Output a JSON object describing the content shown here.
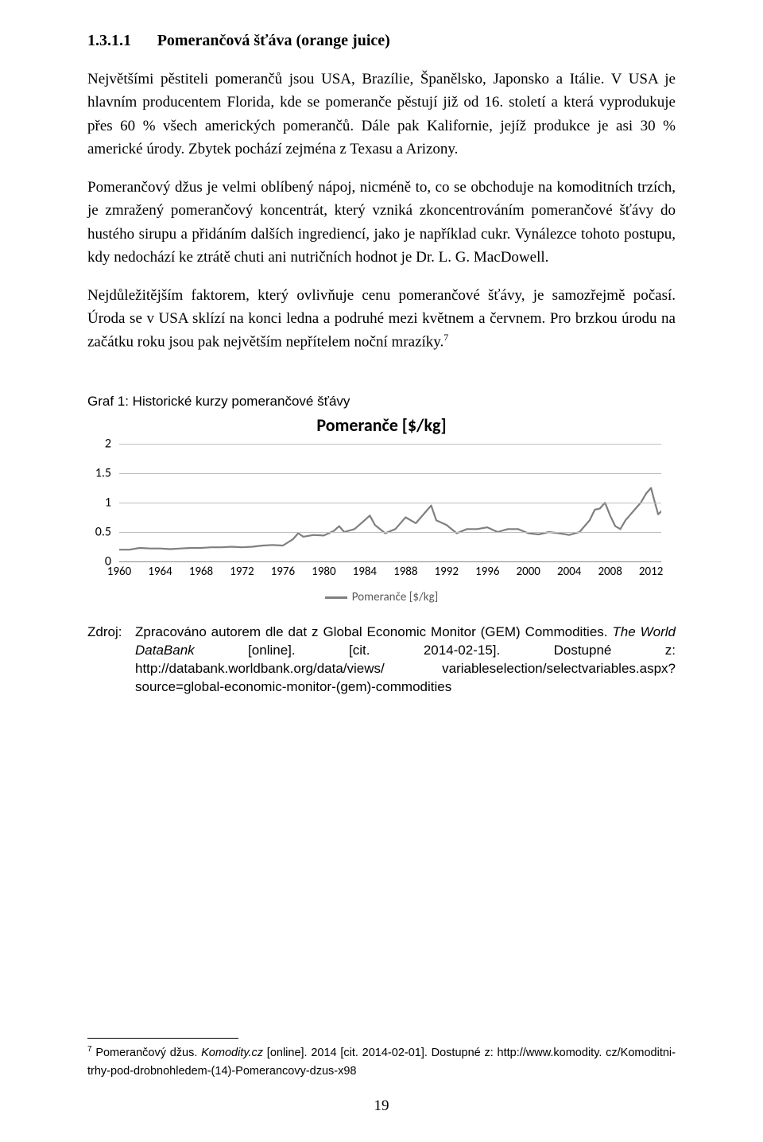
{
  "heading": {
    "num": "1.3.1.1",
    "title": "Pomerančová šťáva (orange juice)"
  },
  "para1": "Největšími pěstiteli pomerančů jsou USA, Brazílie, Španělsko, Japonsko a Itálie. V USA je hlavním producentem Florida, kde se pomeranče pěstují již od 16. století a která vyprodukuje přes 60 % všech amerických pomerančů. Dále pak Kalifornie, jejíž produkce je asi 30 % americké úrody. Zbytek pochází zejména z Texasu a Arizony.",
  "para2": "Pomerančový džus je velmi oblíbený nápoj, nicméně to, co se obchoduje na komoditních trzích, je zmražený pomerančový koncentrát, který vzniká zkoncentrováním pomerančové šťávy do hustého sirupu a přidáním dalších ingrediencí, jako je například cukr. Vynálezce tohoto postupu, kdy nedochází ke ztrátě chuti ani nutričních hodnot je Dr. L. G. MacDowell.",
  "para3_a": "Nejdůležitějším faktorem, který ovlivňuje cenu pomerančové šťávy, je samozřejmě počasí. Úroda se v USA sklízí na konci ledna a podruhé mezi květnem a červnem. Pro brzkou úrodu na začátku roku jsou pak největším nepřítelem noční mrazíky.",
  "para3_sup": "7",
  "graf_label": "Graf 1: Historické kurzy pomerančové šťávy",
  "chart": {
    "title": "Pomeranče [$/kg]",
    "legend": "Pomeranče [$/kg]",
    "line_color": "#7f7f7f",
    "grid_color": "#bfbfbf",
    "ymin": 0,
    "ymax": 2,
    "ystep": 0.5,
    "yticks": [
      "0",
      "0.5",
      "1",
      "1.5",
      "2"
    ],
    "xticks": [
      "1960",
      "1964",
      "1968",
      "1972",
      "1976",
      "1980",
      "1984",
      "1988",
      "1992",
      "1996",
      "2000",
      "2004",
      "2008",
      "2012"
    ],
    "series": [
      [
        1960,
        0.2
      ],
      [
        1961,
        0.2
      ],
      [
        1962,
        0.23
      ],
      [
        1963,
        0.22
      ],
      [
        1964,
        0.22
      ],
      [
        1965,
        0.21
      ],
      [
        1966,
        0.22
      ],
      [
        1967,
        0.23
      ],
      [
        1968,
        0.23
      ],
      [
        1969,
        0.24
      ],
      [
        1970,
        0.24
      ],
      [
        1971,
        0.25
      ],
      [
        1972,
        0.24
      ],
      [
        1973,
        0.25
      ],
      [
        1974,
        0.27
      ],
      [
        1975,
        0.28
      ],
      [
        1976,
        0.27
      ],
      [
        1977,
        0.38
      ],
      [
        1977.5,
        0.48
      ],
      [
        1978,
        0.42
      ],
      [
        1979,
        0.45
      ],
      [
        1980,
        0.44
      ],
      [
        1981,
        0.52
      ],
      [
        1981.5,
        0.6
      ],
      [
        1982,
        0.5
      ],
      [
        1983,
        0.55
      ],
      [
        1984,
        0.7
      ],
      [
        1984.5,
        0.78
      ],
      [
        1985,
        0.62
      ],
      [
        1986,
        0.48
      ],
      [
        1987,
        0.55
      ],
      [
        1988,
        0.75
      ],
      [
        1989,
        0.65
      ],
      [
        1990,
        0.85
      ],
      [
        1990.5,
        0.95
      ],
      [
        1991,
        0.7
      ],
      [
        1992,
        0.62
      ],
      [
        1993,
        0.48
      ],
      [
        1994,
        0.55
      ],
      [
        1995,
        0.55
      ],
      [
        1996,
        0.58
      ],
      [
        1997,
        0.5
      ],
      [
        1998,
        0.55
      ],
      [
        1999,
        0.55
      ],
      [
        2000,
        0.48
      ],
      [
        2001,
        0.46
      ],
      [
        2002,
        0.5
      ],
      [
        2003,
        0.48
      ],
      [
        2004,
        0.45
      ],
      [
        2005,
        0.5
      ],
      [
        2006,
        0.7
      ],
      [
        2006.5,
        0.88
      ],
      [
        2007,
        0.9
      ],
      [
        2007.5,
        1.0
      ],
      [
        2008,
        0.78
      ],
      [
        2008.5,
        0.6
      ],
      [
        2009,
        0.55
      ],
      [
        2009.5,
        0.7
      ],
      [
        2010,
        0.8
      ],
      [
        2010.5,
        0.9
      ],
      [
        2011,
        1.0
      ],
      [
        2011.5,
        1.15
      ],
      [
        2012,
        1.25
      ],
      [
        2012.3,
        1.05
      ],
      [
        2012.7,
        0.8
      ],
      [
        2013,
        0.85
      ],
      [
        2013.5,
        1.0
      ]
    ]
  },
  "source": {
    "label": "Zdroj:",
    "text_a": "Zpracováno autorem dle dat z Global Economic Monitor (GEM) Commodities. ",
    "text_italic": "The World DataBank",
    "text_b": " [online]. [cit. 2014-02-15]. Dostupné z: http://databank.worldbank.org/data/views/ variableselection/selectvariables.aspx?source=global-economic-monitor-(gem)-commodities"
  },
  "footnote": {
    "sup": "7",
    "a": " Pomerančový džus. ",
    "italic": "Komodity.cz",
    "b": " [online]. 2014 [cit. 2014-02-01]. Dostupné z: http://www.komodity. cz/Komoditni-trhy-pod-drobnohledem-(14)-Pomerancovy-dzus-x98"
  },
  "pagenum": "19"
}
